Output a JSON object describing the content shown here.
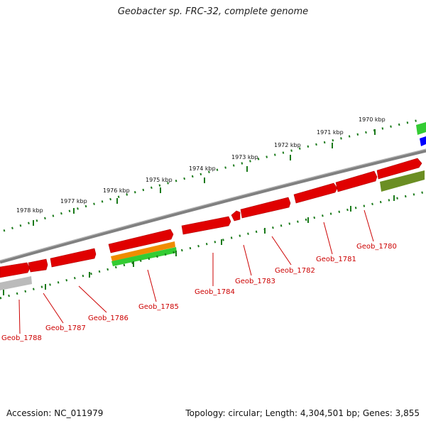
{
  "title": "Geobacter sp. FRC-32, complete genome",
  "footer": {
    "accession": "Accession: NC_011979",
    "stats": "Topology: circular; Length: 4,304,501 bp; Genes: 3,855"
  },
  "colors": {
    "backbone": "#808080",
    "gene_red": "#e00000",
    "gene_orange": "#f08c00",
    "gene_green": "#33cc33",
    "gene_olive": "#6b8e23",
    "gene_blue": "#0000ff",
    "gene_gray": "#bbbbbb",
    "tick": "#1a7a1a",
    "label": "#cc0000"
  },
  "kbp_labels": [
    "1970 kbp",
    "1971 kbp",
    "1972 kbp",
    "1973 kbp",
    "1974 kbp",
    "1975 kbp",
    "1976 kbp",
    "1977 kbp",
    "1978 kbp"
  ],
  "gene_labels": [
    "Geob_1780",
    "Geob_1781",
    "Geob_1782",
    "Geob_1783",
    "Geob_1784",
    "Geob_1785",
    "Geob_1786",
    "Geob_1787",
    "Geob_1788"
  ]
}
